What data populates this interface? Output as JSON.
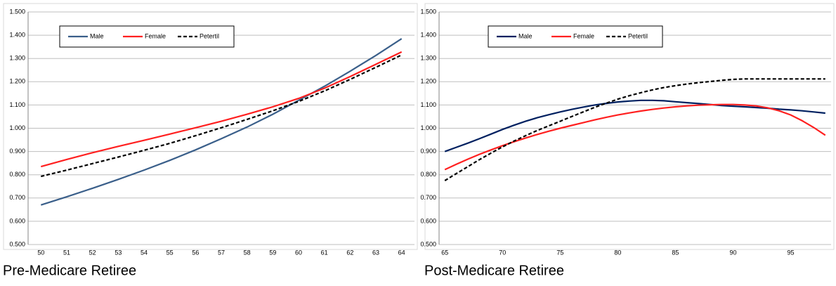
{
  "chart_data": [
    {
      "type": "line",
      "title": "Pre-Medicare Retiree",
      "categories": [
        "50",
        "51",
        "52",
        "53",
        "54",
        "55",
        "56",
        "57",
        "58",
        "59",
        "60",
        "61",
        "62",
        "63",
        "64"
      ],
      "series": [
        {
          "name": "Male",
          "color": "#3a5f8a",
          "dash": false,
          "values": [
            0.67,
            0.705,
            0.742,
            0.78,
            0.82,
            0.862,
            0.907,
            0.955,
            1.005,
            1.06,
            1.12,
            1.18,
            1.245,
            1.313,
            1.385
          ]
        },
        {
          "name": "Female",
          "color": "#ff2020",
          "dash": false,
          "values": [
            0.835,
            0.866,
            0.895,
            0.922,
            0.948,
            0.975,
            1.002,
            1.03,
            1.06,
            1.092,
            1.128,
            1.172,
            1.222,
            1.275,
            1.328
          ]
        },
        {
          "name": "Petertil",
          "color": "#000000",
          "dash": true,
          "values": [
            0.793,
            0.82,
            0.848,
            0.876,
            0.905,
            0.935,
            0.968,
            1.002,
            1.038,
            1.075,
            1.115,
            1.16,
            1.21,
            1.262,
            1.315
          ]
        }
      ],
      "ylim": [
        0.5,
        1.5
      ],
      "yticks": [
        {
          "value": 0.5,
          "label": "0.500"
        },
        {
          "value": 0.6,
          "label": "0.600"
        },
        {
          "value": 0.7,
          "label": "0.700"
        },
        {
          "value": 0.8,
          "label": "0.800"
        },
        {
          "value": 0.9,
          "label": "0.900"
        },
        {
          "value": 1.0,
          "label": "1.000"
        },
        {
          "value": 1.1,
          "label": "1.100"
        },
        {
          "value": 1.2,
          "label": "1.200"
        },
        {
          "value": 1.3,
          "label": "1.300"
        },
        {
          "value": 1.4,
          "label": "1.400"
        },
        {
          "value": 1.5,
          "label": "1.500"
        }
      ],
      "grid": true,
      "legend": "top-left"
    },
    {
      "type": "line",
      "title": "Post-Medicare Retiree",
      "categories": [
        "65",
        null,
        null,
        null,
        null,
        "70",
        null,
        null,
        null,
        null,
        "75",
        null,
        null,
        null,
        null,
        "80",
        null,
        null,
        null,
        null,
        "85",
        null,
        null,
        null,
        null,
        "90",
        null,
        null,
        null,
        null,
        "95",
        null,
        null,
        null
      ],
      "series": [
        {
          "name": "Male",
          "color": "#002060",
          "dash": false,
          "values": [
            0.9,
            0.918,
            0.936,
            0.955,
            0.975,
            0.995,
            1.013,
            1.03,
            1.045,
            1.058,
            1.07,
            1.081,
            1.091,
            1.1,
            1.107,
            1.113,
            1.117,
            1.12,
            1.12,
            1.118,
            1.114,
            1.11,
            1.106,
            1.102,
            1.098,
            1.095,
            1.092,
            1.089,
            1.086,
            1.082,
            1.079,
            1.075,
            1.07,
            1.065
          ]
        },
        {
          "name": "Female",
          "color": "#ff2020",
          "dash": false,
          "values": [
            0.822,
            0.845,
            0.867,
            0.888,
            0.907,
            0.925,
            0.942,
            0.958,
            0.973,
            0.987,
            1.0,
            1.012,
            1.024,
            1.036,
            1.047,
            1.057,
            1.066,
            1.074,
            1.081,
            1.087,
            1.092,
            1.096,
            1.099,
            1.101,
            1.102,
            1.102,
            1.1,
            1.096,
            1.088,
            1.075,
            1.057,
            1.032,
            1.003,
            0.97
          ]
        },
        {
          "name": "Petertil",
          "color": "#000000",
          "dash": true,
          "values": [
            0.775,
            0.805,
            0.835,
            0.865,
            0.893,
            0.92,
            0.945,
            0.968,
            0.99,
            1.01,
            1.03,
            1.05,
            1.07,
            1.09,
            1.108,
            1.125,
            1.14,
            1.153,
            1.165,
            1.175,
            1.183,
            1.19,
            1.196,
            1.201,
            1.206,
            1.21,
            1.212,
            1.212,
            1.212,
            1.212,
            1.212,
            1.212,
            1.212,
            1.212
          ]
        }
      ],
      "ylim": [
        0.5,
        1.5
      ],
      "yticks": [
        {
          "value": 0.5,
          "label": "0.500"
        },
        {
          "value": 0.6,
          "label": "0.600"
        },
        {
          "value": 0.7,
          "label": "0.700"
        },
        {
          "value": 0.8,
          "label": "0.800"
        },
        {
          "value": 0.9,
          "label": "0.900"
        },
        {
          "value": 1.0,
          "label": "1.000"
        },
        {
          "value": 1.1,
          "label": "1.100"
        },
        {
          "value": 1.2,
          "label": "1.200"
        },
        {
          "value": 1.3,
          "label": "1.300"
        },
        {
          "value": 1.4,
          "label": "1.400"
        },
        {
          "value": 1.5,
          "label": "1.500"
        }
      ],
      "grid": true,
      "legend": "top-left"
    }
  ]
}
